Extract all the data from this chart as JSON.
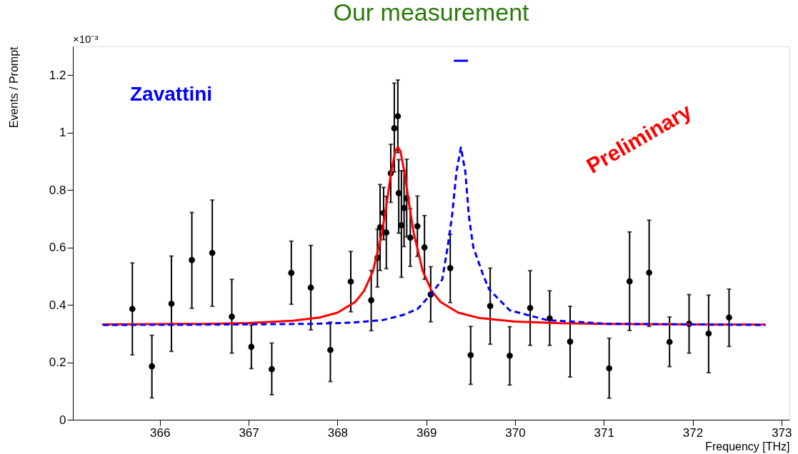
{
  "chart_data": {
    "type": "scatter",
    "title": "Our measurement",
    "xlabel": "Frequency [THz]",
    "ylabel": "Events / Prompt",
    "annotations": [
      "×10⁻³",
      "Zavattini",
      "Preliminary"
    ],
    "xlim": [
      365.02,
      373.09
    ],
    "ylim": [
      0,
      1.3
    ],
    "xticks": [
      366,
      367,
      368,
      369,
      370,
      371,
      372,
      373
    ],
    "yticks": [
      0,
      0.2,
      0.4,
      0.6,
      0.8,
      1,
      1.2
    ],
    "grid": false,
    "series": [
      {
        "marker": "circle",
        "color": "#000000",
        "x": [
          365.69,
          365.91,
          366.13,
          366.36,
          366.59,
          366.81,
          367.03,
          367.26,
          367.48,
          367.7,
          367.92,
          368.15,
          368.38,
          368.45,
          368.48,
          368.52,
          368.55,
          368.6,
          368.64,
          368.68,
          368.69,
          368.72,
          368.75,
          368.78,
          368.82,
          368.9,
          368.98,
          369.05,
          369.27,
          369.5,
          369.72,
          369.94,
          370.17,
          370.39,
          370.62,
          371.06,
          371.29,
          371.51,
          371.74,
          371.96,
          372.18,
          372.41
        ],
        "values": [
          0.386,
          0.186,
          0.404,
          0.556,
          0.581,
          0.359,
          0.254,
          0.176,
          0.511,
          0.46,
          0.243,
          0.481,
          0.416,
          0.564,
          0.67,
          0.72,
          0.652,
          0.858,
          1.015,
          1.057,
          0.789,
          0.677,
          0.737,
          0.771,
          0.634,
          0.674,
          0.6,
          0.436,
          0.528,
          0.225,
          0.396,
          0.223,
          0.389,
          0.353,
          0.272,
          0.179,
          0.482,
          0.512,
          0.271,
          0.334,
          0.3,
          0.356
        ],
        "errors": [
          [
            0.226,
            0.546
          ],
          [
            0.076,
            0.294
          ],
          [
            0.238,
            0.57
          ],
          [
            0.388,
            0.722
          ],
          [
            0.395,
            0.765
          ],
          [
            0.232,
            0.489
          ],
          [
            0.178,
            0.33
          ],
          [
            0.087,
            0.267
          ],
          [
            0.402,
            0.622
          ],
          [
            0.313,
            0.607
          ],
          [
            0.133,
            0.34
          ],
          [
            0.376,
            0.586
          ],
          [
            0.31,
            0.52
          ],
          [
            0.462,
            0.663
          ],
          [
            0.52,
            0.819
          ],
          [
            0.627,
            0.809
          ],
          [
            0.526,
            0.778
          ],
          [
            0.757,
            0.959
          ],
          [
            0.863,
            1.172
          ],
          [
            0.93,
            1.183
          ],
          [
            0.65,
            0.906
          ],
          [
            0.496,
            0.867
          ],
          [
            0.603,
            0.867
          ],
          [
            0.637,
            0.907
          ],
          [
            0.534,
            0.735
          ],
          [
            0.569,
            0.779
          ],
          [
            0.489,
            0.711
          ],
          [
            0.341,
            0.533
          ],
          [
            0.408,
            0.646
          ],
          [
            0.123,
            0.325
          ],
          [
            0.263,
            0.528
          ],
          [
            0.121,
            0.324
          ],
          [
            0.259,
            0.519
          ],
          [
            0.259,
            0.449
          ],
          [
            0.149,
            0.395
          ],
          [
            0.075,
            0.284
          ],
          [
            0.311,
            0.654
          ],
          [
            0.325,
            0.695
          ],
          [
            0.185,
            0.358
          ],
          [
            0.232,
            0.436
          ],
          [
            0.164,
            0.434
          ],
          [
            0.255,
            0.455
          ]
        ]
      },
      {
        "type": "line",
        "line_style": "solid",
        "color": "#ff0000",
        "x": [
          365.35,
          366,
          366.5,
          367,
          367.5,
          367.8,
          368.0,
          368.2,
          368.3,
          368.4,
          368.5,
          368.55,
          368.6,
          368.65,
          368.68,
          368.71,
          368.76,
          368.81,
          368.86,
          368.96,
          369.06,
          369.16,
          369.36,
          369.6,
          370,
          370.5,
          371,
          372,
          372.82
        ],
        "values": [
          0.332,
          0.333,
          0.334,
          0.337,
          0.345,
          0.356,
          0.373,
          0.41,
          0.449,
          0.518,
          0.648,
          0.745,
          0.852,
          0.934,
          0.95,
          0.934,
          0.852,
          0.745,
          0.648,
          0.518,
          0.449,
          0.41,
          0.373,
          0.354,
          0.342,
          0.336,
          0.334,
          0.332,
          0.331
        ]
      },
      {
        "type": "line",
        "line_style": "dashed",
        "color": "#0000ff",
        "x": [
          365.36,
          366.5,
          367.74,
          368.15,
          368.51,
          368.73,
          368.9,
          369.05,
          369.18,
          369.24,
          369.29,
          369.34,
          369.39,
          369.44,
          369.48,
          369.53,
          369.65,
          369.71,
          369.94,
          370.36,
          371.05,
          372.82
        ],
        "values": [
          0.33,
          0.331,
          0.334,
          0.338,
          0.347,
          0.364,
          0.385,
          0.436,
          0.488,
          0.6,
          0.709,
          0.863,
          0.948,
          0.863,
          0.709,
          0.6,
          0.496,
          0.453,
          0.381,
          0.347,
          0.334,
          0.33
        ]
      },
      {
        "type": "line",
        "line_style": "solid",
        "color": "#0000ff",
        "x": [
          369.31,
          369.47
        ],
        "values": [
          1.25,
          1.25
        ]
      }
    ]
  }
}
